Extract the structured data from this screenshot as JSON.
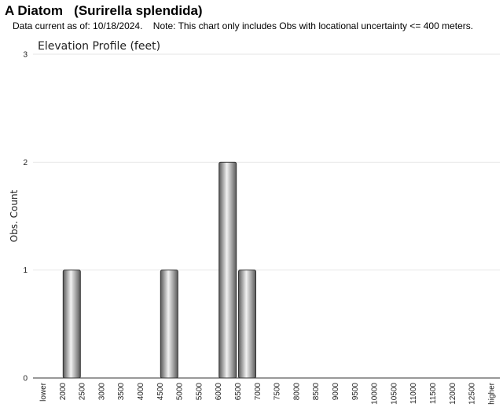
{
  "header": {
    "title": "A Diatom   (Surirella splendida)",
    "subtitle": "Data current as of: 10/18/2024.    Note: This chart only includes Obs with locational uncertainty <= 400 meters."
  },
  "chart_data": {
    "type": "bar",
    "title": "Elevation Profile (feet)",
    "xlabel": "",
    "ylabel": "Obs. Count",
    "ylim": [
      0,
      3
    ],
    "yticks": [
      "0",
      "1",
      "2",
      "3"
    ],
    "grid": true,
    "categories": [
      "lower",
      "2000",
      "2500",
      "3000",
      "3500",
      "4000",
      "4500",
      "5000",
      "5500",
      "6000",
      "6500",
      "7000",
      "7500",
      "8000",
      "8500",
      "9000",
      "9500",
      "10000",
      "10500",
      "11000",
      "11500",
      "12000",
      "12500",
      "higher"
    ],
    "values": [
      0,
      1,
      0,
      0,
      0,
      0,
      1,
      0,
      0,
      2,
      1,
      0,
      0,
      0,
      0,
      0,
      0,
      0,
      0,
      0,
      0,
      0,
      0,
      0
    ],
    "colors": {
      "bar_dark": "#5a5a5a",
      "bar_light": "#f2f2f2",
      "grid": "#e6e6e6",
      "axis": "#333333"
    }
  }
}
